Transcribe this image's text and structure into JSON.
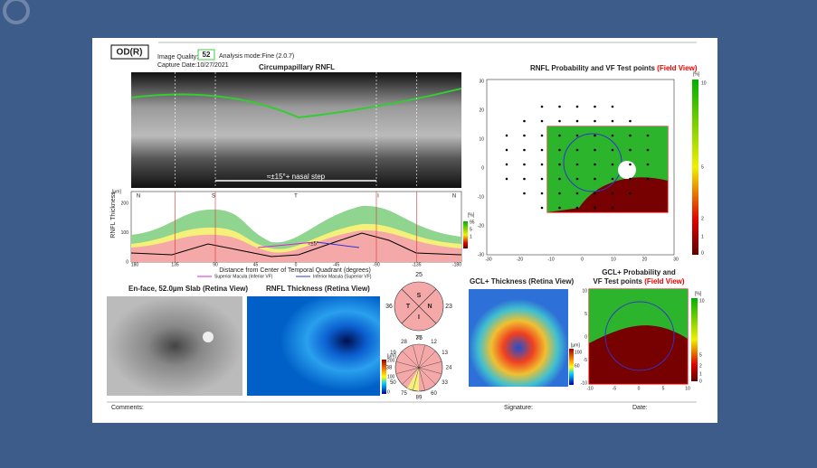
{
  "header": {
    "eye": "OD(R)",
    "quality_label": "Image Quality:",
    "quality": "52",
    "analysis_mode": "Analysis mode:Fine (2.0.7)",
    "capture_date": "Capture Date:10/27/2021"
  },
  "rnfl_profile": {
    "title": "Circumpapillary RNFL",
    "annotation": "≈±15°+ nasal step",
    "annotation_small": "≈±5°",
    "sectors": [
      "N",
      "S",
      "T",
      "I",
      "N"
    ],
    "y_label": "RNFL Thickness",
    "y_unit": "[µm]",
    "yticks": [
      "200",
      "100",
      "0"
    ],
    "xticks": [
      "180",
      "135",
      "90",
      "45",
      "0",
      "-45",
      "-90",
      "-135",
      "-180"
    ],
    "x_label": "Distance from Center of Temporal Quadrant (degrees)",
    "legend_unit": "[%]",
    "legend": [
      "95",
      "5",
      "1"
    ],
    "line_legend": [
      "Superior Macula (Inferior VF)",
      "Inferior Macula (Superior VF)"
    ]
  },
  "probability_map": {
    "title": "RNFL Probability and VF Test points",
    "title_view": "(Field View)",
    "ticks": [
      "30",
      "20",
      "10",
      "0",
      "-10",
      "-20",
      "-30"
    ],
    "colorbar_unit": "[%]",
    "colorbar": [
      "10",
      "5",
      "2",
      "1",
      "0"
    ]
  },
  "enface": {
    "title": "En-face, 52.0µm Slab (Retina View)"
  },
  "thickness_map": {
    "title": "RNFL Thickness (Retina View)",
    "colorbar_unit": "[µm]",
    "colorbar": [
      "200",
      "100",
      "0"
    ]
  },
  "quadrants": {
    "labels": [
      "S",
      "N",
      "I",
      "T"
    ],
    "values": [
      25,
      23,
      75,
      36
    ]
  },
  "clock_hours": {
    "values": [
      37,
      12,
      13,
      24,
      33,
      60,
      89,
      75,
      50,
      38,
      19,
      28
    ]
  },
  "gcl_thickness": {
    "title": "GCL+ Thickness (Retina View)",
    "colorbar_unit": "[µm]",
    "colorbar": [
      "100",
      "60"
    ]
  },
  "gcl_probability": {
    "title": "GCL+ Probability and",
    "title2": "VF Test points",
    "title_view": "(Field View)",
    "ticks": [
      "10",
      "5",
      "0",
      "-5",
      "-10"
    ],
    "colorbar_unit": "[%]",
    "colorbar": [
      "10",
      "5",
      "2",
      "1",
      "0"
    ]
  },
  "footer": {
    "comments": "Comments:",
    "signature": "Signature:",
    "date": "Date:"
  }
}
